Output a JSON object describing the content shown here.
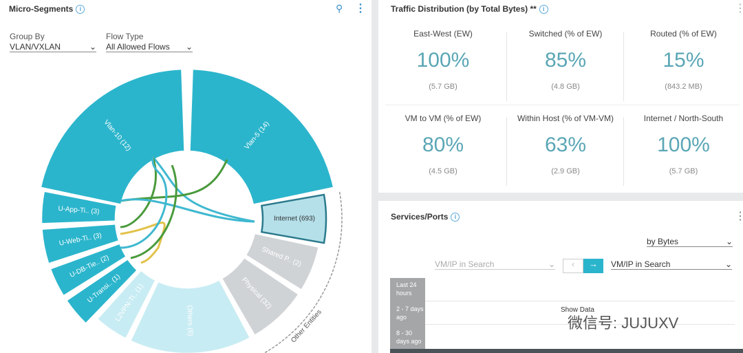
{
  "micro_segments": {
    "title": "Micro-Segments",
    "group_by_label": "Group By",
    "group_by_value": "VLAN/VXLAN",
    "flow_type_label": "Flow Type",
    "flow_type_value": "All Allowed Flows",
    "segments": [
      "Vlan-10 (12)",
      "Vlan-5 (14)",
      "Internet (693)",
      "Shared P.. (2)",
      "Physical (32)",
      "Others (6)",
      "L2VPN-Ti.. (1)",
      "U-Transi.. (1)",
      "U-DB-Tie.. (2)",
      "U-Web-Ti.. (3)",
      "U-App-Ti.. (3)"
    ],
    "other_label": "Other Entities"
  },
  "traffic": {
    "title": "Traffic Distribution (by Total Bytes) **",
    "cards": [
      {
        "label": "East-West (EW)",
        "value": "100%",
        "sub": "(5.7 GB)"
      },
      {
        "label": "Switched (% of EW)",
        "value": "85%",
        "sub": "(4.8 GB)"
      },
      {
        "label": "Routed (% of EW)",
        "value": "15%",
        "sub": "(843.2 MB)"
      },
      {
        "label": "VM to VM (% of EW)",
        "value": "80%",
        "sub": "(4.5 GB)"
      },
      {
        "label": "Within Host (% of VM-VM)",
        "value": "63%",
        "sub": "(2.9 GB)"
      },
      {
        "label": "Internet / North-South",
        "value": "100%",
        "sub": "(5.7 GB)"
      }
    ]
  },
  "services": {
    "title": "Services/Ports",
    "sort": "by Bytes",
    "search_left": "VM/IP in Search",
    "search_right": "VM/IP in Search",
    "time_ranges": [
      "Last 24 hours",
      "2 - 7 days ago",
      "8 - 30 days ago"
    ],
    "show_data": "Show Data"
  },
  "watermark": "微信号: JUJUXV"
}
